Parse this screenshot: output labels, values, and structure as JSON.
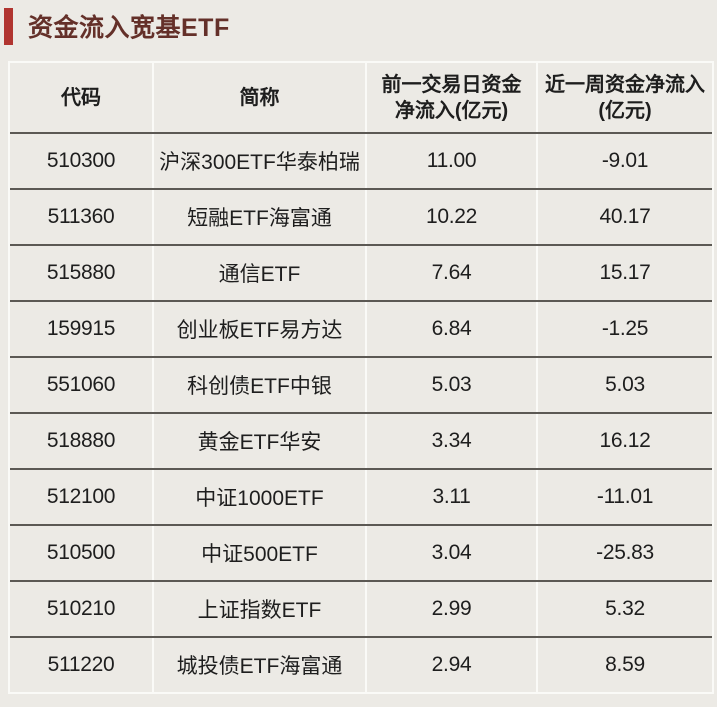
{
  "header": {
    "title": "资金流入宽基ETF",
    "accent_color": "#b13530",
    "title_color": "#643029"
  },
  "colors": {
    "page_background": "#eceae5",
    "cell_background": "#eceae5",
    "light_separator": "#fafaf7",
    "dark_divider": "#5c5954",
    "body_text": "#1e1e1e"
  },
  "table": {
    "columns": {
      "code": "代码",
      "name": "简称",
      "prev_day_line1": "前一交易日资金",
      "prev_day_line2": "净流入(亿元)",
      "week_line1": "近一周资金净流入",
      "week_line2": "(亿元)"
    },
    "rows": [
      {
        "code": "510300",
        "name": "沪深300ETF华泰柏瑞",
        "prev_day": "11.00",
        "week": "-9.01"
      },
      {
        "code": "511360",
        "name": "短融ETF海富通",
        "prev_day": "10.22",
        "week": "40.17"
      },
      {
        "code": "515880",
        "name": "通信ETF",
        "prev_day": "7.64",
        "week": "15.17"
      },
      {
        "code": "159915",
        "name": "创业板ETF易方达",
        "prev_day": "6.84",
        "week": "-1.25"
      },
      {
        "code": "551060",
        "name": "科创债ETF中银",
        "prev_day": "5.03",
        "week": "5.03"
      },
      {
        "code": "518880",
        "name": "黄金ETF华安",
        "prev_day": "3.34",
        "week": "16.12"
      },
      {
        "code": "512100",
        "name": "中证1000ETF",
        "prev_day": "3.11",
        "week": "-11.01"
      },
      {
        "code": "510500",
        "name": "中证500ETF",
        "prev_day": "3.04",
        "week": "-25.83"
      },
      {
        "code": "510210",
        "name": "上证指数ETF",
        "prev_day": "2.99",
        "week": "5.32"
      },
      {
        "code": "511220",
        "name": "城投债ETF海富通",
        "prev_day": "2.94",
        "week": "8.59"
      }
    ]
  },
  "chart_data": {
    "type": "table",
    "title": "资金流入宽基ETF",
    "columns": [
      "代码",
      "简称",
      "前一交易日资金净流入(亿元)",
      "近一周资金净流入(亿元)"
    ],
    "rows": [
      [
        "510300",
        "沪深300ETF华泰柏瑞",
        11.0,
        -9.01
      ],
      [
        "511360",
        "短融ETF海富通",
        10.22,
        40.17
      ],
      [
        "515880",
        "通信ETF",
        7.64,
        15.17
      ],
      [
        "159915",
        "创业板ETF易方达",
        6.84,
        -1.25
      ],
      [
        "551060",
        "科创债ETF中银",
        5.03,
        5.03
      ],
      [
        "518880",
        "黄金ETF华安",
        3.34,
        16.12
      ],
      [
        "512100",
        "中证1000ETF",
        3.11,
        -11.01
      ],
      [
        "510500",
        "中证500ETF",
        3.04,
        -25.83
      ],
      [
        "510210",
        "上证指数ETF",
        2.99,
        5.32
      ],
      [
        "511220",
        "城投债ETF海富通",
        2.94,
        8.59
      ]
    ]
  }
}
